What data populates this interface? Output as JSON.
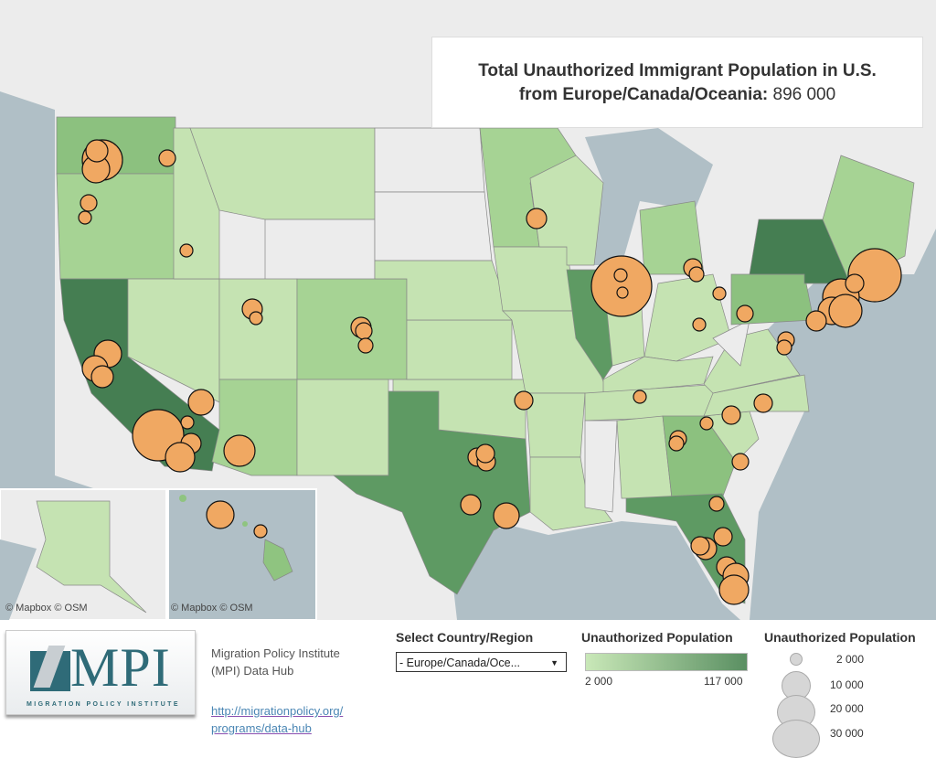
{
  "title": {
    "line1": "Total Unauthorized Immigrant Population in U.S.",
    "line2": "from Europe/Canada/Oceania:",
    "total": "896 000"
  },
  "credits": {
    "alaska": "© Mapbox  © OSM",
    "hawaii": "© Mapbox  © OSM"
  },
  "footer": {
    "logo_text": "MPI",
    "logo_subtext": "MIGRATION POLICY INSTITUTE",
    "org_line1": "Migration Policy Institute",
    "org_line2": "(MPI) Data Hub",
    "link_line1": "http://migrationpolicy.org/",
    "link_line2": "programs/data-hub"
  },
  "filter": {
    "label": "Select Country/Region",
    "selected": "- Europe/Canada/Oce..."
  },
  "color_legend": {
    "title": "Unauthorized Population",
    "min": "2 000",
    "max": "117 000",
    "color_min": "#c9e8b8",
    "color_max": "#5a8f62"
  },
  "size_legend": {
    "title": "Unauthorized Population",
    "items": [
      "2 000",
      "10 000",
      "20 000",
      "30 000"
    ]
  },
  "colors": {
    "bubble": "#f0a862",
    "sea": "#b0bfc6",
    "land": "#ececec"
  }
}
